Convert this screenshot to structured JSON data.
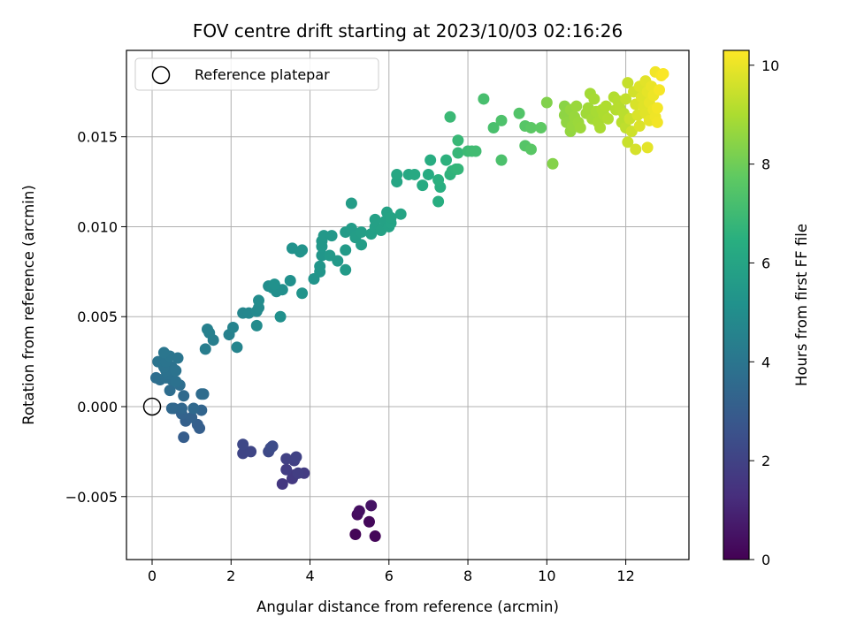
{
  "chart_data": {
    "type": "scatter",
    "title": "FOV centre drift starting at 2023/10/03 02:16:26",
    "xlabel": "Angular distance from reference (arcmin)",
    "ylabel": "Rotation from reference (arcmin)",
    "xlim": [
      -0.65,
      13.6
    ],
    "ylim": [
      -0.0085,
      0.0198
    ],
    "xticks": [
      0,
      2,
      4,
      6,
      8,
      10,
      12
    ],
    "xtick_labels": [
      "0",
      "2",
      "4",
      "6",
      "8",
      "10",
      "12"
    ],
    "yticks": [
      -0.005,
      0.0,
      0.005,
      0.01,
      0.015
    ],
    "ytick_labels": [
      "−0.005",
      "0.000",
      "0.005",
      "0.010",
      "0.015"
    ],
    "grid": true,
    "legend": {
      "placement": "top-left",
      "entries": [
        "Reference platepar"
      ]
    },
    "reference_point": {
      "x": 0,
      "y": 0
    },
    "colorbar": {
      "label": "Hours from first FF file",
      "colormap": "viridis",
      "range": [
        0,
        10.3
      ],
      "ticks": [
        0,
        2,
        4,
        6,
        8,
        10
      ],
      "tick_labels": [
        "0",
        "2",
        "4",
        "6",
        "8",
        "10"
      ]
    },
    "points": [
      {
        "x": 5.15,
        "y": -0.0071,
        "c": 0.1
      },
      {
        "x": 5.65,
        "y": -0.0072,
        "c": 0.15
      },
      {
        "x": 5.5,
        "y": -0.0064,
        "c": 0.2
      },
      {
        "x": 5.2,
        "y": -0.006,
        "c": 0.3
      },
      {
        "x": 5.25,
        "y": -0.0058,
        "c": 0.4
      },
      {
        "x": 5.55,
        "y": -0.0055,
        "c": 0.5
      },
      {
        "x": 3.3,
        "y": -0.0043,
        "c": 1.6
      },
      {
        "x": 3.55,
        "y": -0.004,
        "c": 1.65
      },
      {
        "x": 3.6,
        "y": -0.0038,
        "c": 1.7
      },
      {
        "x": 3.85,
        "y": -0.0037,
        "c": 1.75
      },
      {
        "x": 3.4,
        "y": -0.0035,
        "c": 1.8
      },
      {
        "x": 3.7,
        "y": -0.0037,
        "c": 1.85
      },
      {
        "x": 3.6,
        "y": -0.003,
        "c": 1.9
      },
      {
        "x": 3.4,
        "y": -0.0029,
        "c": 1.95
      },
      {
        "x": 3.65,
        "y": -0.0028,
        "c": 2.0
      },
      {
        "x": 2.3,
        "y": -0.0026,
        "c": 2.1
      },
      {
        "x": 2.5,
        "y": -0.0025,
        "c": 2.15
      },
      {
        "x": 2.3,
        "y": -0.0021,
        "c": 2.2
      },
      {
        "x": 2.95,
        "y": -0.0025,
        "c": 2.25
      },
      {
        "x": 3.0,
        "y": -0.0023,
        "c": 2.3
      },
      {
        "x": 3.05,
        "y": -0.0022,
        "c": 2.35
      },
      {
        "x": 0.8,
        "y": -0.0017,
        "c": 3.0
      },
      {
        "x": 1.2,
        "y": -0.0012,
        "c": 3.05
      },
      {
        "x": 1.15,
        "y": -0.001,
        "c": 3.1
      },
      {
        "x": 0.85,
        "y": -0.0008,
        "c": 3.15
      },
      {
        "x": 1.0,
        "y": -0.0006,
        "c": 3.2
      },
      {
        "x": 0.75,
        "y": -0.0004,
        "c": 3.25
      },
      {
        "x": 0.55,
        "y": -0.0001,
        "c": 3.3
      },
      {
        "x": 1.25,
        "y": -0.0002,
        "c": 3.35
      },
      {
        "x": 0.75,
        "y": -0.0001,
        "c": 3.4
      },
      {
        "x": 0.5,
        "y": -0.0001,
        "c": 3.45
      },
      {
        "x": 1.05,
        "y": -0.0001,
        "c": 3.5
      },
      {
        "x": 0.8,
        "y": 0.0006,
        "c": 3.55
      },
      {
        "x": 1.25,
        "y": 0.0007,
        "c": 3.6
      },
      {
        "x": 1.3,
        "y": 0.0007,
        "c": 3.62
      },
      {
        "x": 0.45,
        "y": 0.0009,
        "c": 3.65
      },
      {
        "x": 0.7,
        "y": 0.0012,
        "c": 3.7
      },
      {
        "x": 0.1,
        "y": 0.0016,
        "c": 3.72
      },
      {
        "x": 0.2,
        "y": 0.0015,
        "c": 3.75
      },
      {
        "x": 0.35,
        "y": 0.0016,
        "c": 3.78
      },
      {
        "x": 0.5,
        "y": 0.0015,
        "c": 3.8
      },
      {
        "x": 0.4,
        "y": 0.0018,
        "c": 3.82
      },
      {
        "x": 0.6,
        "y": 0.0014,
        "c": 3.84
      },
      {
        "x": 0.35,
        "y": 0.002,
        "c": 3.86
      },
      {
        "x": 0.5,
        "y": 0.0022,
        "c": 3.88
      },
      {
        "x": 0.3,
        "y": 0.0022,
        "c": 3.9
      },
      {
        "x": 0.6,
        "y": 0.002,
        "c": 3.92
      },
      {
        "x": 0.15,
        "y": 0.0025,
        "c": 3.94
      },
      {
        "x": 0.35,
        "y": 0.0025,
        "c": 3.96
      },
      {
        "x": 0.45,
        "y": 0.0028,
        "c": 3.98
      },
      {
        "x": 0.65,
        "y": 0.0027,
        "c": 4.0
      },
      {
        "x": 0.3,
        "y": 0.003,
        "c": 4.02
      },
      {
        "x": 1.35,
        "y": 0.0032,
        "c": 4.3
      },
      {
        "x": 1.55,
        "y": 0.0037,
        "c": 4.35
      },
      {
        "x": 1.45,
        "y": 0.0041,
        "c": 4.4
      },
      {
        "x": 1.4,
        "y": 0.0043,
        "c": 4.45
      },
      {
        "x": 1.95,
        "y": 0.004,
        "c": 4.5
      },
      {
        "x": 2.05,
        "y": 0.0044,
        "c": 4.55
      },
      {
        "x": 2.15,
        "y": 0.0033,
        "c": 4.6
      },
      {
        "x": 2.3,
        "y": 0.0052,
        "c": 4.7
      },
      {
        "x": 2.45,
        "y": 0.0052,
        "c": 4.75
      },
      {
        "x": 2.65,
        "y": 0.0053,
        "c": 4.8
      },
      {
        "x": 2.7,
        "y": 0.0055,
        "c": 4.85
      },
      {
        "x": 2.65,
        "y": 0.0045,
        "c": 4.9
      },
      {
        "x": 2.7,
        "y": 0.0059,
        "c": 4.95
      },
      {
        "x": 2.95,
        "y": 0.0067,
        "c": 5.0
      },
      {
        "x": 3.15,
        "y": 0.0064,
        "c": 5.02
      },
      {
        "x": 3.05,
        "y": 0.0066,
        "c": 5.05
      },
      {
        "x": 3.3,
        "y": 0.0065,
        "c": 5.08
      },
      {
        "x": 3.25,
        "y": 0.005,
        "c": 5.1
      },
      {
        "x": 3.5,
        "y": 0.007,
        "c": 5.12
      },
      {
        "x": 3.1,
        "y": 0.0068,
        "c": 5.15
      },
      {
        "x": 3.55,
        "y": 0.0088,
        "c": 5.2
      },
      {
        "x": 3.75,
        "y": 0.0086,
        "c": 5.22
      },
      {
        "x": 3.8,
        "y": 0.0087,
        "c": 5.25
      },
      {
        "x": 3.8,
        "y": 0.0063,
        "c": 5.27
      },
      {
        "x": 4.1,
        "y": 0.0071,
        "c": 5.3
      },
      {
        "x": 4.25,
        "y": 0.0075,
        "c": 5.32
      },
      {
        "x": 4.25,
        "y": 0.0078,
        "c": 5.35
      },
      {
        "x": 4.3,
        "y": 0.0084,
        "c": 5.37
      },
      {
        "x": 4.3,
        "y": 0.0089,
        "c": 5.4
      },
      {
        "x": 4.3,
        "y": 0.0092,
        "c": 5.42
      },
      {
        "x": 4.35,
        "y": 0.0095,
        "c": 5.45
      },
      {
        "x": 4.55,
        "y": 0.0095,
        "c": 5.47
      },
      {
        "x": 4.5,
        "y": 0.0084,
        "c": 5.5
      },
      {
        "x": 4.7,
        "y": 0.0081,
        "c": 5.52
      },
      {
        "x": 4.9,
        "y": 0.0076,
        "c": 5.55
      },
      {
        "x": 4.9,
        "y": 0.0087,
        "c": 5.57
      },
      {
        "x": 4.9,
        "y": 0.0097,
        "c": 5.6
      },
      {
        "x": 5.05,
        "y": 0.0099,
        "c": 5.62
      },
      {
        "x": 5.05,
        "y": 0.0113,
        "c": 5.65
      },
      {
        "x": 5.15,
        "y": 0.0094,
        "c": 5.67
      },
      {
        "x": 5.3,
        "y": 0.009,
        "c": 5.7
      },
      {
        "x": 5.3,
        "y": 0.0097,
        "c": 5.72
      },
      {
        "x": 5.55,
        "y": 0.0096,
        "c": 5.75
      },
      {
        "x": 5.65,
        "y": 0.01,
        "c": 5.8
      },
      {
        "x": 5.65,
        "y": 0.0104,
        "c": 5.82
      },
      {
        "x": 5.8,
        "y": 0.0098,
        "c": 5.85
      },
      {
        "x": 5.9,
        "y": 0.0103,
        "c": 5.88
      },
      {
        "x": 5.95,
        "y": 0.0108,
        "c": 5.9
      },
      {
        "x": 6.0,
        "y": 0.01,
        "c": 5.92
      },
      {
        "x": 6.05,
        "y": 0.0102,
        "c": 5.95
      },
      {
        "x": 6.05,
        "y": 0.0105,
        "c": 5.97
      },
      {
        "x": 6.3,
        "y": 0.0107,
        "c": 6.0
      },
      {
        "x": 6.2,
        "y": 0.0125,
        "c": 6.05
      },
      {
        "x": 6.2,
        "y": 0.0129,
        "c": 6.1
      },
      {
        "x": 6.5,
        "y": 0.0129,
        "c": 6.15
      },
      {
        "x": 6.65,
        "y": 0.0129,
        "c": 6.2
      },
      {
        "x": 6.85,
        "y": 0.0123,
        "c": 6.25
      },
      {
        "x": 7.0,
        "y": 0.0129,
        "c": 6.3
      },
      {
        "x": 7.05,
        "y": 0.0137,
        "c": 6.35
      },
      {
        "x": 7.25,
        "y": 0.0114,
        "c": 6.4
      },
      {
        "x": 7.3,
        "y": 0.0122,
        "c": 6.45
      },
      {
        "x": 7.25,
        "y": 0.0126,
        "c": 6.5
      },
      {
        "x": 7.45,
        "y": 0.0137,
        "c": 6.55
      },
      {
        "x": 7.55,
        "y": 0.0129,
        "c": 6.6
      },
      {
        "x": 7.6,
        "y": 0.0131,
        "c": 6.65
      },
      {
        "x": 7.7,
        "y": 0.0132,
        "c": 6.7
      },
      {
        "x": 7.75,
        "y": 0.0132,
        "c": 6.75
      },
      {
        "x": 7.75,
        "y": 0.0141,
        "c": 6.8
      },
      {
        "x": 7.75,
        "y": 0.0148,
        "c": 6.85
      },
      {
        "x": 7.55,
        "y": 0.0161,
        "c": 6.9
      },
      {
        "x": 8.0,
        "y": 0.0142,
        "c": 6.95
      },
      {
        "x": 8.1,
        "y": 0.0142,
        "c": 7.0
      },
      {
        "x": 8.2,
        "y": 0.0142,
        "c": 7.05
      },
      {
        "x": 8.4,
        "y": 0.0171,
        "c": 7.2
      },
      {
        "x": 8.65,
        "y": 0.0155,
        "c": 7.25
      },
      {
        "x": 8.85,
        "y": 0.0137,
        "c": 7.3
      },
      {
        "x": 8.85,
        "y": 0.0159,
        "c": 7.35
      },
      {
        "x": 9.3,
        "y": 0.0163,
        "c": 7.45
      },
      {
        "x": 9.45,
        "y": 0.0145,
        "c": 7.5
      },
      {
        "x": 9.45,
        "y": 0.0156,
        "c": 7.55
      },
      {
        "x": 9.6,
        "y": 0.0143,
        "c": 7.6
      },
      {
        "x": 9.6,
        "y": 0.0155,
        "c": 7.65
      },
      {
        "x": 9.85,
        "y": 0.0155,
        "c": 7.7
      },
      {
        "x": 10.0,
        "y": 0.0169,
        "c": 8.3
      },
      {
        "x": 10.15,
        "y": 0.0135,
        "c": 8.35
      },
      {
        "x": 10.45,
        "y": 0.0167,
        "c": 8.45
      },
      {
        "x": 10.45,
        "y": 0.0162,
        "c": 8.5
      },
      {
        "x": 10.5,
        "y": 0.0158,
        "c": 8.55
      },
      {
        "x": 10.6,
        "y": 0.0153,
        "c": 8.6
      },
      {
        "x": 10.6,
        "y": 0.0165,
        "c": 8.62
      },
      {
        "x": 10.65,
        "y": 0.0156,
        "c": 8.65
      },
      {
        "x": 10.7,
        "y": 0.0161,
        "c": 8.67
      },
      {
        "x": 10.75,
        "y": 0.0167,
        "c": 8.7
      },
      {
        "x": 10.8,
        "y": 0.0158,
        "c": 8.72
      },
      {
        "x": 10.85,
        "y": 0.0155,
        "c": 8.75
      },
      {
        "x": 11.0,
        "y": 0.0163,
        "c": 8.8
      },
      {
        "x": 11.05,
        "y": 0.0166,
        "c": 8.82
      },
      {
        "x": 11.1,
        "y": 0.0174,
        "c": 8.85
      },
      {
        "x": 11.15,
        "y": 0.016,
        "c": 8.87
      },
      {
        "x": 11.2,
        "y": 0.0171,
        "c": 8.9
      },
      {
        "x": 11.25,
        "y": 0.0164,
        "c": 8.92
      },
      {
        "x": 11.3,
        "y": 0.0158,
        "c": 8.95
      },
      {
        "x": 11.35,
        "y": 0.0155,
        "c": 8.97
      },
      {
        "x": 11.4,
        "y": 0.0165,
        "c": 9.0
      },
      {
        "x": 11.45,
        "y": 0.0162,
        "c": 9.02
      },
      {
        "x": 11.5,
        "y": 0.0167,
        "c": 9.05
      },
      {
        "x": 11.55,
        "y": 0.016,
        "c": 9.07
      },
      {
        "x": 11.7,
        "y": 0.0172,
        "c": 9.1
      },
      {
        "x": 11.75,
        "y": 0.0165,
        "c": 9.12
      },
      {
        "x": 11.8,
        "y": 0.017,
        "c": 9.15
      },
      {
        "x": 11.85,
        "y": 0.0166,
        "c": 9.17
      },
      {
        "x": 11.9,
        "y": 0.0158,
        "c": 9.2
      },
      {
        "x": 11.95,
        "y": 0.0163,
        "c": 9.22
      },
      {
        "x": 12.0,
        "y": 0.0155,
        "c": 9.3
      },
      {
        "x": 12.0,
        "y": 0.0171,
        "c": 9.35
      },
      {
        "x": 12.05,
        "y": 0.018,
        "c": 9.4
      },
      {
        "x": 12.05,
        "y": 0.0147,
        "c": 9.45
      },
      {
        "x": 12.1,
        "y": 0.016,
        "c": 9.5
      },
      {
        "x": 12.15,
        "y": 0.0153,
        "c": 9.55
      },
      {
        "x": 12.2,
        "y": 0.0175,
        "c": 9.6
      },
      {
        "x": 12.25,
        "y": 0.0143,
        "c": 9.65
      },
      {
        "x": 12.25,
        "y": 0.0168,
        "c": 9.7
      },
      {
        "x": 12.3,
        "y": 0.0162,
        "c": 9.72
      },
      {
        "x": 12.35,
        "y": 0.0156,
        "c": 9.75
      },
      {
        "x": 12.35,
        "y": 0.0178,
        "c": 9.78
      },
      {
        "x": 12.4,
        "y": 0.0172,
        "c": 9.8
      },
      {
        "x": 12.45,
        "y": 0.0167,
        "c": 9.82
      },
      {
        "x": 12.5,
        "y": 0.0163,
        "c": 9.85
      },
      {
        "x": 12.5,
        "y": 0.0181,
        "c": 9.87
      },
      {
        "x": 12.55,
        "y": 0.0144,
        "c": 9.9
      },
      {
        "x": 12.55,
        "y": 0.0175,
        "c": 9.92
      },
      {
        "x": 12.6,
        "y": 0.0159,
        "c": 9.95
      },
      {
        "x": 12.6,
        "y": 0.0169,
        "c": 9.97
      },
      {
        "x": 12.65,
        "y": 0.0178,
        "c": 10.0
      },
      {
        "x": 12.7,
        "y": 0.0165,
        "c": 10.02
      },
      {
        "x": 12.7,
        "y": 0.0173,
        "c": 10.05
      },
      {
        "x": 12.75,
        "y": 0.0161,
        "c": 10.07
      },
      {
        "x": 12.75,
        "y": 0.0186,
        "c": 10.1
      },
      {
        "x": 12.8,
        "y": 0.0158,
        "c": 10.12
      },
      {
        "x": 12.8,
        "y": 0.0166,
        "c": 10.15
      },
      {
        "x": 12.85,
        "y": 0.0176,
        "c": 10.18
      },
      {
        "x": 12.9,
        "y": 0.0184,
        "c": 10.2
      },
      {
        "x": 12.95,
        "y": 0.0185,
        "c": 10.25
      }
    ]
  }
}
